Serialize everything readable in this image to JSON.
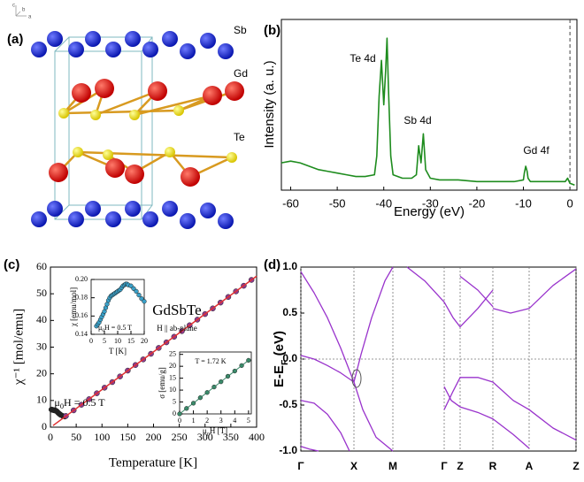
{
  "structure": {
    "panel_label": "(a)",
    "axes": [
      "c",
      "b",
      "a"
    ],
    "labels": [
      "Sb",
      "Gd",
      "Te"
    ]
  },
  "chart_data": [
    {
      "type": "line",
      "panel_label": "(b)",
      "xlabel": "Energy (eV)",
      "ylabel": "Intensity (a. u.)",
      "xlim": [
        -62,
        1.5
      ],
      "ylim": [
        0,
        100
      ],
      "xticks": [
        -60,
        -50,
        -40,
        -30,
        -20,
        -10,
        0
      ],
      "vlines": [
        0
      ],
      "annotations": [
        "Te 4d",
        "Sb 4d",
        "Gd 4f"
      ],
      "series": [
        {
          "color": "#1e8c1e",
          "style": "line",
          "x": [
            -62,
            -60,
            -58,
            -56,
            -54,
            -52,
            -50,
            -48,
            -46,
            -44,
            -42,
            -41.5,
            -41,
            -40.5,
            -40,
            -39.6,
            -39.3,
            -39,
            -38.5,
            -38,
            -36,
            -34,
            -33,
            -32.5,
            -32,
            -31.5,
            -31,
            -30,
            -28,
            -24,
            -20,
            -16,
            -12,
            -10,
            -9.8,
            -9.5,
            -9.2,
            -9,
            -8.5,
            -6,
            -3,
            -1,
            -0.5,
            0,
            1
          ],
          "values": [
            16,
            17,
            16,
            14,
            12,
            11,
            10,
            9,
            8,
            8,
            9,
            20,
            55,
            76,
            50,
            70,
            89,
            60,
            20,
            9,
            7,
            7,
            9,
            26,
            16,
            33,
            12,
            7,
            6,
            6,
            5,
            5,
            5,
            6,
            10,
            14,
            11,
            7,
            5,
            5,
            5,
            5,
            7,
            4,
            3
          ]
        }
      ]
    },
    {
      "type": "scatter",
      "panel_label": "(c)",
      "title": "GdSbTe",
      "subtitle": "H || ab-plane",
      "annotations": [
        [
          "μ",
          "0",
          "H = 0.5 T"
        ]
      ],
      "xlabel": "Temperature [K]",
      "ylabel": "χ⁻¹ [mol/emu]",
      "xlim": [
        0,
        400
      ],
      "ylim": [
        0,
        60
      ],
      "xticks": [
        0,
        50,
        100,
        150,
        200,
        250,
        300,
        350,
        400
      ],
      "yticks": [
        0,
        10,
        20,
        30,
        40,
        50,
        60
      ],
      "series": [
        {
          "color": "#222222",
          "style": "markers",
          "x": [
            2,
            4,
            6,
            8,
            10,
            12,
            14,
            16,
            18,
            20,
            24,
            28
          ],
          "values": [
            6.6,
            6.5,
            6.4,
            6.3,
            6.2,
            6.0,
            5.6,
            5.2,
            4.9,
            4.6,
            4.2,
            4.0
          ]
        },
        {
          "color": "#8e3a8e",
          "style": "markers",
          "x": [
            30,
            45,
            60,
            75,
            90,
            105,
            120,
            135,
            150,
            165,
            180,
            195,
            210,
            225,
            240,
            255,
            270,
            285,
            300,
            315,
            330,
            345,
            360,
            375,
            390
          ],
          "values": [
            4.2,
            6.3,
            8.4,
            10.5,
            12.7,
            14.8,
            16.9,
            19.0,
            21.2,
            23.3,
            25.4,
            27.5,
            29.7,
            31.8,
            33.9,
            36.0,
            38.2,
            40.3,
            42.4,
            44.5,
            46.7,
            48.8,
            50.9,
            53.0,
            55.2
          ]
        },
        {
          "color": "#e03030",
          "style": "line",
          "x": [
            5,
            400
          ],
          "values": [
            0.6,
            56.6
          ]
        }
      ]
    },
    {
      "type": "scatter",
      "xlabel": "T [K]",
      "ylabel": "χ [emu/mol]",
      "annotations": [
        [
          "μ",
          "0",
          "H = 0.5 T"
        ]
      ],
      "xlim": [
        0,
        20
      ],
      "ylim": [
        0.14,
        0.2
      ],
      "xticks": [
        0,
        5,
        10,
        15,
        20
      ],
      "yticks": [
        0.14,
        0.16,
        0.18,
        {
          "value": 0.2,
          "label": "0.20"
        }
      ],
      "series": [
        {
          "color": "#3aa0c8",
          "style": "markers",
          "x": [
            2,
            2.5,
            3,
            3.5,
            4,
            4.5,
            5,
            5.5,
            6,
            6.5,
            7,
            7.5,
            8,
            8.5,
            9,
            9.5,
            10,
            10.5,
            11,
            11.5,
            12,
            12.5,
            13,
            13.5,
            14,
            15,
            16,
            17,
            18,
            19,
            20
          ],
          "values": [
            0.149,
            0.151,
            0.153,
            0.156,
            0.159,
            0.162,
            0.165,
            0.169,
            0.173,
            0.177,
            0.18,
            0.182,
            0.183,
            0.184,
            0.185,
            0.186,
            0.187,
            0.188,
            0.189,
            0.191,
            0.193,
            0.194,
            0.195,
            0.195,
            0.194,
            0.193,
            0.19,
            0.187,
            0.183,
            0.179,
            0.176
          ]
        }
      ]
    },
    {
      "type": "scatter",
      "xlabel": [
        "μ",
        "0",
        "H [T]"
      ],
      "ylabel": "σ [emu/g]",
      "annotations": [
        "T = 1.72 K"
      ],
      "xlim": [
        0,
        5.2
      ],
      "ylim": [
        0,
        26
      ],
      "xticks": [
        0,
        1,
        2,
        3,
        4,
        5
      ],
      "yticks": [
        0,
        5,
        10,
        15,
        20,
        25
      ],
      "series": [
        {
          "color": "#3a8a6a",
          "style": "markers+line",
          "x": [
            0,
            0.5,
            1,
            1.5,
            2,
            2.5,
            3,
            3.5,
            4,
            4.5,
            5
          ],
          "values": [
            0,
            2.3,
            4.5,
            6.8,
            9,
            11.3,
            13.5,
            15.8,
            18,
            20.3,
            22.5
          ]
        }
      ]
    },
    {
      "type": "line",
      "panel_label": "(d)",
      "ylabel": [
        "E-E",
        "F",
        " (eV)"
      ],
      "xlim": [
        0,
        311
      ],
      "ylim": [
        -1,
        1
      ],
      "xgrid": true,
      "hlines": [
        0
      ],
      "xticks": [
        {
          "value": 0,
          "label": "Γ"
        },
        {
          "value": 60,
          "label": "X"
        },
        {
          "value": 104,
          "label": "M"
        },
        {
          "value": 162,
          "label": "Γ"
        },
        {
          "value": 180,
          "label": "Z"
        },
        {
          "value": 217,
          "label": "R"
        },
        {
          "value": 258,
          "label": "A"
        },
        {
          "value": 311,
          "label": "Z"
        }
      ],
      "yticks": [
        {
          "value": -1,
          "label": "-1.0"
        },
        {
          "value": -0.5,
          "label": "-0.5"
        },
        {
          "value": 0,
          "label": "0.0"
        },
        {
          "value": 0.5,
          "label": "0.5"
        },
        {
          "value": 1,
          "label": "1.0"
        }
      ],
      "series": [
        {
          "color": "#9933cc",
          "style": "line",
          "x": [
            0,
            15,
            30,
            45,
            60,
            68,
            80,
            95,
            104
          ],
          "values": [
            0.95,
            0.72,
            0.45,
            0.12,
            -0.25,
            0.05,
            0.45,
            0.85,
            1.0
          ]
        },
        {
          "color": "#9933cc",
          "style": "line",
          "x": [
            0,
            15,
            30,
            45,
            60,
            70,
            85,
            104
          ],
          "values": [
            0.04,
            0.0,
            -0.07,
            -0.15,
            -0.25,
            -0.55,
            -0.85,
            -1.0
          ]
        },
        {
          "color": "#9933cc",
          "style": "line",
          "x": [
            0,
            15,
            30,
            45,
            55
          ],
          "values": [
            -0.45,
            -0.48,
            -0.6,
            -0.8,
            -1.0
          ]
        },
        {
          "color": "#9933cc",
          "style": "line",
          "x": [
            0,
            10,
            20
          ],
          "values": [
            -0.95,
            -0.98,
            -1.0
          ]
        },
        {
          "color": "#9933cc",
          "style": "line",
          "x": [
            120,
            140,
            162,
            172,
            180,
            200,
            217
          ],
          "values": [
            1.0,
            0.85,
            0.62,
            0.45,
            0.35,
            0.55,
            0.75
          ]
        },
        {
          "color": "#9933cc",
          "style": "line",
          "x": [
            162,
            172,
            180,
            200,
            217,
            240,
            258,
            285,
            311
          ],
          "values": [
            -0.55,
            -0.35,
            -0.2,
            -0.2,
            -0.25,
            -0.45,
            -0.55,
            -0.75,
            -0.88
          ]
        },
        {
          "color": "#9933cc",
          "style": "line",
          "x": [
            162,
            170,
            180,
            200,
            217,
            240,
            258
          ],
          "values": [
            -0.3,
            -0.45,
            -0.52,
            -0.58,
            -0.65,
            -0.82,
            -0.97
          ]
        },
        {
          "color": "#9933cc",
          "style": "line",
          "x": [
            217,
            237,
            258,
            285,
            311
          ],
          "values": [
            0.55,
            0.5,
            0.55,
            0.8,
            0.98
          ]
        },
        {
          "color": "#9933cc",
          "style": "line",
          "x": [
            180,
            200,
            217
          ],
          "values": [
            0.9,
            0.75,
            0.57
          ]
        }
      ]
    }
  ]
}
